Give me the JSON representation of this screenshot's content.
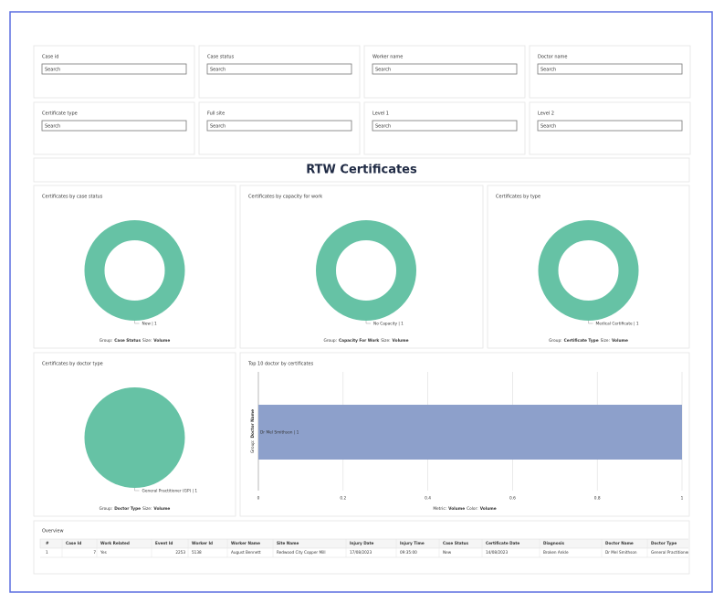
{
  "filters": [
    {
      "label": "Case id",
      "placeholder": "Search"
    },
    {
      "label": "Case status",
      "placeholder": "Search"
    },
    {
      "label": "Worker name",
      "placeholder": "Search"
    },
    {
      "label": "Doctor name",
      "placeholder": "Search"
    },
    {
      "label": "Certificate type",
      "placeholder": "Search"
    },
    {
      "label": "Full site",
      "placeholder": "Search"
    },
    {
      "label": "Level 1",
      "placeholder": "Search"
    },
    {
      "label": "Level 2",
      "placeholder": "Search"
    }
  ],
  "title": "RTW Certificates",
  "keys": {
    "group": "Group:",
    "size": "Size:",
    "metric": "Metric:",
    "color": "Color:"
  },
  "donuts": [
    {
      "title": "Certificates by case status",
      "label": "New | 1",
      "value": 1,
      "group": "Case Status",
      "size": "Volume",
      "color": "#66c2a5",
      "hole": true
    },
    {
      "title": "Certificates by capacity for work",
      "label": "No Capacity | 1",
      "value": 1,
      "group": "Capacity For Work",
      "size": "Volume",
      "color": "#66c2a5",
      "hole": true
    },
    {
      "title": "Certificates by type",
      "label": "Medical Certificate | 1",
      "value": 1,
      "group": "Certificate Type",
      "size": "Volume",
      "color": "#66c2a5",
      "hole": true
    },
    {
      "title": "Certificates by doctor type",
      "label": "General Practitioner (GP) | 1",
      "value": 1,
      "group": "Doctor Type",
      "size": "Volume",
      "color": "#66c2a5",
      "hole": false
    }
  ],
  "bar_chart": {
    "title": "Top 10 doctor by certificates",
    "group": "Doctor Name",
    "label": "Dr Mel Smithson | 1",
    "value": 1,
    "color": "#8da0cb",
    "xlim": [
      0,
      1
    ],
    "xticks": [
      0,
      0.2,
      0.4,
      0.6,
      0.8,
      1
    ],
    "metric": "Volume",
    "color_by": "Volume"
  },
  "table": {
    "title": "Overview",
    "columns": [
      "#",
      "Case Id",
      "Work Related",
      "Event Id",
      "Worker Id",
      "Worker Name",
      "Site Name",
      "Injury Date",
      "Injury Time",
      "Case Status",
      "Certificate Date",
      "Diagnosis",
      "Doctor Name",
      "Doctor Type"
    ],
    "rows": [
      [
        "1",
        "7",
        "Yes",
        "2253",
        "5138",
        "August Bennett",
        "Redwood City Copper Mill",
        "17/08/2023",
        "09:35:00",
        "New",
        "14/08/2023",
        "Broken Ankle",
        "Dr Mel Smithson",
        "General Practitioner"
      ]
    ]
  }
}
